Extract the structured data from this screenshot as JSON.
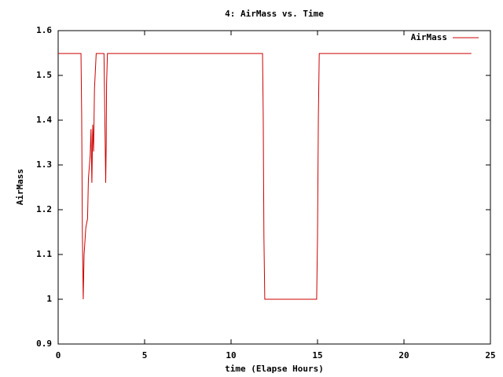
{
  "chart_data": {
    "type": "line",
    "title": "4: AirMass vs. Time",
    "x_label": "time (Elapse Hours)",
    "y_label": "AirMass",
    "x": [
      0,
      1.32,
      1.36,
      1.4,
      1.45,
      1.5,
      1.6,
      1.7,
      1.75,
      1.85,
      1.9,
      1.95,
      2.0,
      2.05,
      2.1,
      2.2,
      2.65,
      2.75,
      2.78,
      2.8,
      2.85,
      11.82,
      11.86,
      11.9,
      11.95,
      14.95,
      15.0,
      15.05,
      15.1,
      23.9
    ],
    "series": [
      {
        "name": "AirMass",
        "color": "#cc0000",
        "values": [
          1.549,
          1.549,
          1.41,
          1.15,
          1.0,
          1.1,
          1.16,
          1.18,
          1.27,
          1.32,
          1.38,
          1.26,
          1.39,
          1.33,
          1.47,
          1.549,
          1.549,
          1.26,
          1.35,
          1.48,
          1.549,
          1.549,
          1.41,
          1.14,
          1.0,
          1.0,
          1.14,
          1.41,
          1.549,
          1.549
        ]
      }
    ],
    "xlim": [
      0,
      25
    ],
    "xticks": [
      0,
      5,
      10,
      15,
      20,
      25
    ],
    "ylim": [
      0.9,
      1.6
    ],
    "yticks": [
      0.9,
      1,
      1.1,
      1.2,
      1.3,
      1.4,
      1.5,
      1.6
    ],
    "legend": "top-right"
  }
}
